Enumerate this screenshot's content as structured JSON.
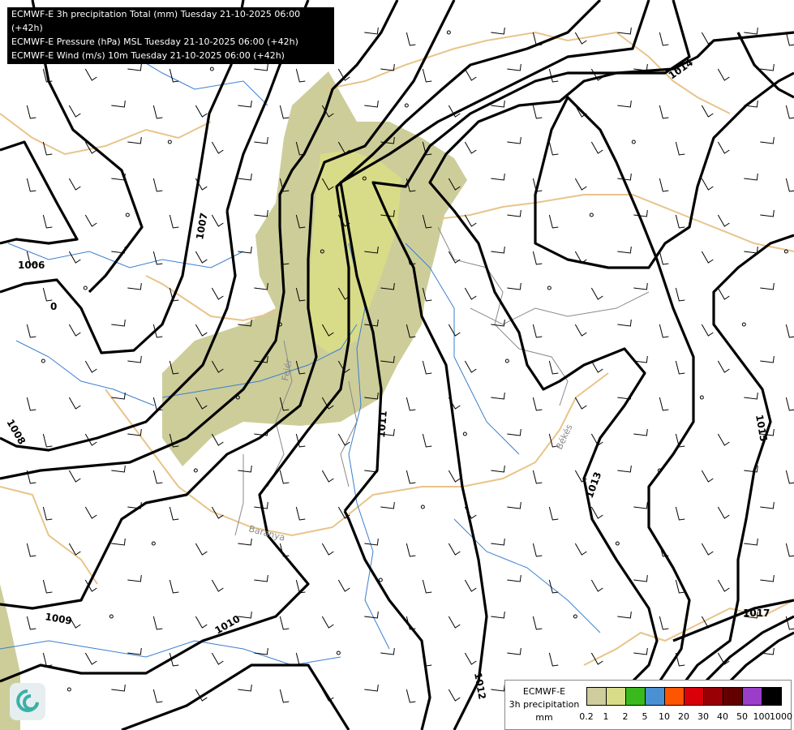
{
  "header": {
    "lines": [
      "ECMWF-E 3h precipitation Total (mm) Tuesday 21-10-2025 06:00 (+42h)",
      "ECMWF-E Pressure (hPa) MSL Tuesday 21-10-2025 06:00 (+42h)",
      "ECMWF-E Wind (m/s) 10m Tuesday 21-10-2025 06:00 (+42h)"
    ]
  },
  "map": {
    "region_labels": [
      "Fejér",
      "Békés",
      "Baranya"
    ],
    "isobar_labels": [
      "1006",
      "1007",
      "1008",
      "1009",
      "1010",
      "1011",
      "1012",
      "1013",
      "1014",
      "1015",
      "1017"
    ],
    "low_marker": "0",
    "colors": {
      "isobar": "#000000",
      "river": "#3a7fd0",
      "border_country": "#e8c48a",
      "border_county": "#8a8a8a",
      "precip_light": "#cdcd9a",
      "precip_1": "#d8dc88"
    }
  },
  "legend": {
    "title_lines": [
      "ECMWF-E",
      "3h precipitation",
      "mm"
    ],
    "colors": [
      "#cfcc9d",
      "#d8dc88",
      "#39b91e",
      "#4a90d2",
      "#fd5500",
      "#d9000a",
      "#990005",
      "#620000",
      "#9a3ec9",
      "#000000"
    ],
    "ticks": [
      "0.2",
      "1",
      "2",
      "5",
      "10",
      "20",
      "30",
      "40",
      "50",
      "100",
      "1000"
    ]
  },
  "logo": {
    "icon": "swirl-logo-icon"
  }
}
